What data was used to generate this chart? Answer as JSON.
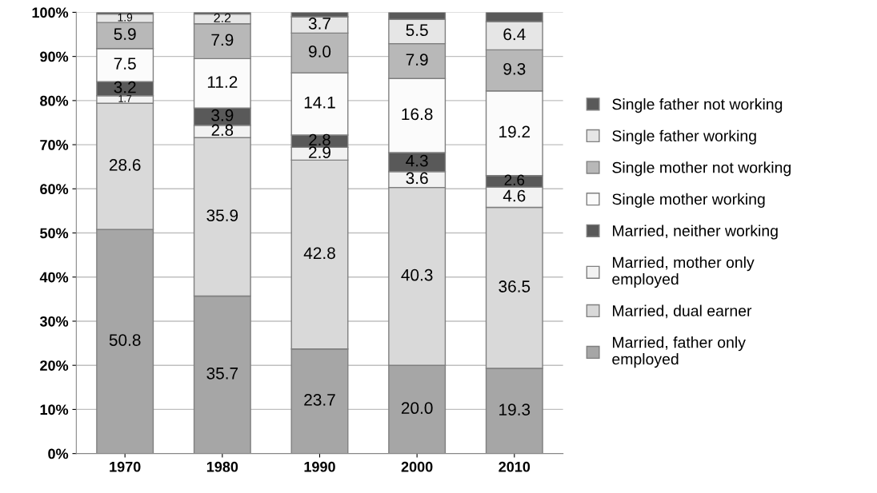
{
  "chart_data": {
    "type": "bar",
    "stacked": true,
    "categories": [
      "1970",
      "1980",
      "1990",
      "2000",
      "2010"
    ],
    "ylim": [
      0,
      100
    ],
    "yticks": [
      {
        "value": 0,
        "label": "0%"
      },
      {
        "value": 10,
        "label": "10%"
      },
      {
        "value": 20,
        "label": "20%"
      },
      {
        "value": 30,
        "label": "30%"
      },
      {
        "value": 40,
        "label": "40%"
      },
      {
        "value": 50,
        "label": "50%"
      },
      {
        "value": 60,
        "label": "60%"
      },
      {
        "value": 70,
        "label": "70%"
      },
      {
        "value": 80,
        "label": "80%"
      },
      {
        "value": 90,
        "label": "90%"
      },
      {
        "value": 100,
        "label": "100%"
      }
    ],
    "grid": "y",
    "legend": "right",
    "series": [
      {
        "name": "Married, father only\nemployed",
        "color": "#a6a6a6",
        "values": [
          50.8,
          35.7,
          23.7,
          20.0,
          19.3
        ],
        "value_labels": [
          "50.8",
          "35.7",
          "23.7",
          "20.0",
          "19.3"
        ]
      },
      {
        "name": "Married, dual earner",
        "color": "#d9d9d9",
        "values": [
          28.6,
          35.9,
          42.8,
          40.3,
          36.5
        ],
        "value_labels": [
          "28.6",
          "35.9",
          "42.8",
          "40.3",
          "36.5"
        ]
      },
      {
        "name": "Married, mother only\nemployed",
        "color": "#f2f2f2",
        "values": [
          1.7,
          2.8,
          2.9,
          3.6,
          4.6
        ],
        "value_labels": [
          "1.7",
          "2.8",
          "2.9",
          "3.6",
          "4.6"
        ]
      },
      {
        "name": "Married, neither working",
        "color": "#595959",
        "values": [
          3.2,
          3.9,
          2.8,
          4.3,
          2.6
        ],
        "value_labels": [
          "3.2",
          "3.9",
          "2.8",
          "4.3",
          "2.6"
        ]
      },
      {
        "name": "Single mother working",
        "color": "#fbfbfb",
        "values": [
          7.5,
          11.2,
          14.1,
          16.8,
          19.2
        ],
        "value_labels": [
          "7.5",
          "11.2",
          "14.1",
          "16.8",
          "19.2"
        ]
      },
      {
        "name": "Single mother not working",
        "color": "#b8b8b8",
        "values": [
          5.9,
          7.9,
          9.0,
          7.9,
          9.3
        ],
        "value_labels": [
          "5.9",
          "7.9",
          "9.0",
          "7.9",
          "9.3"
        ]
      },
      {
        "name": "Single father working",
        "color": "#e6e6e6",
        "values": [
          1.9,
          2.2,
          3.7,
          5.5,
          6.4
        ],
        "value_labels": [
          "1.9",
          "2.2",
          "3.7",
          "5.5",
          "6.4"
        ]
      },
      {
        "name": "Single father not working",
        "color": "#595959",
        "values": [
          0.4,
          0.4,
          1.0,
          1.6,
          2.1
        ],
        "value_labels": [
          null,
          null,
          null,
          null,
          null
        ]
      }
    ]
  }
}
